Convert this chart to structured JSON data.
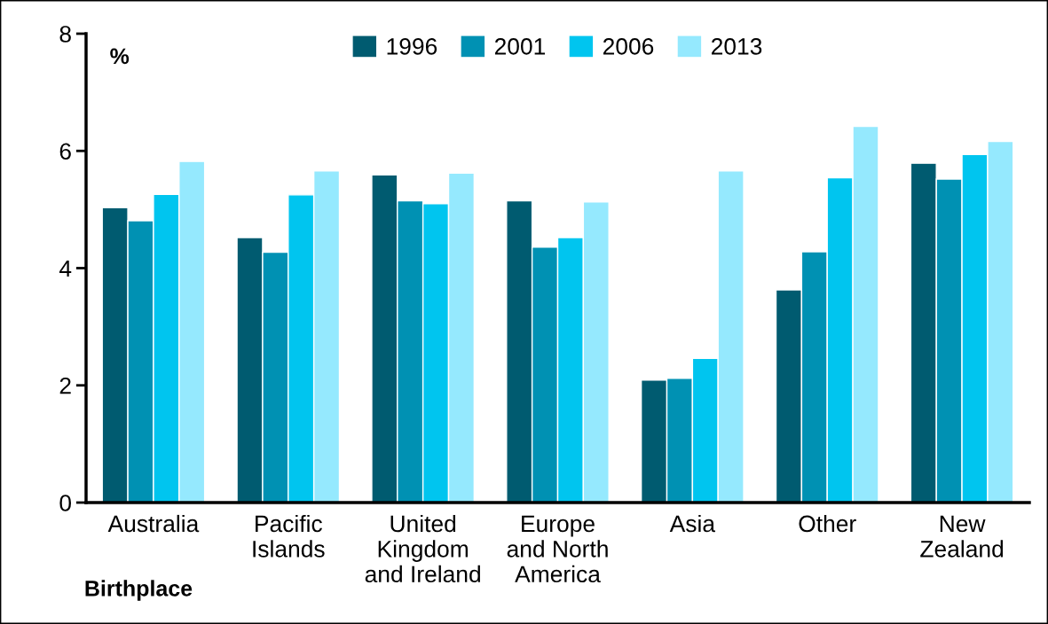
{
  "chart_data": {
    "type": "bar",
    "ylabel": "%",
    "xlabel": "Birthplace",
    "categories": [
      "Australia",
      "Pacific\nIslands",
      "United\nKingdom\nand Ireland",
      "Europe\nand North\nAmerica",
      "Asia",
      "Other",
      "New\nZealand"
    ],
    "series": [
      {
        "name": "1996",
        "color": "#005b70",
        "values": [
          5.03,
          4.52,
          5.59,
          5.15,
          2.09,
          3.63,
          5.79
        ]
      },
      {
        "name": "2001",
        "color": "#0091b3",
        "values": [
          4.81,
          4.27,
          5.15,
          4.36,
          2.12,
          4.28,
          5.52
        ]
      },
      {
        "name": "2006",
        "color": "#00c5ef",
        "values": [
          5.26,
          5.25,
          5.1,
          4.52,
          2.46,
          5.54,
          5.94
        ]
      },
      {
        "name": "2013",
        "color": "#95e9fe",
        "values": [
          5.82,
          5.66,
          5.62,
          5.13,
          5.66,
          6.42,
          6.16
        ]
      }
    ],
    "ylim": [
      0,
      8
    ],
    "yticks": [
      0,
      2,
      4,
      6,
      8
    ],
    "grid": false,
    "legend": "top"
  }
}
